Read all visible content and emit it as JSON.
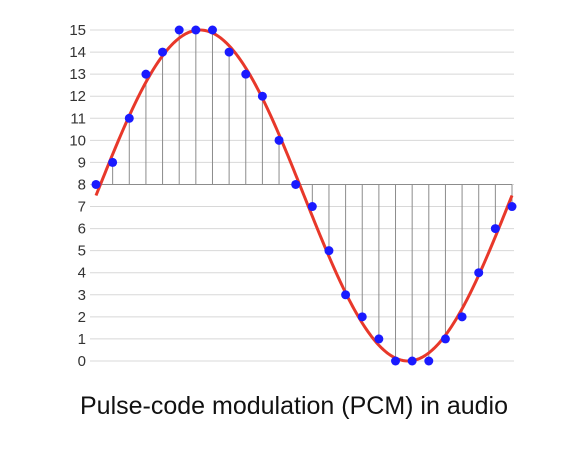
{
  "caption": "Pulse-code modulation (PCM) in audio",
  "colors": {
    "signal": "#e8382a",
    "samples": "#1a1aff",
    "grid": "#d8d8d8",
    "stems": "#8c8c8c",
    "text": "#333333"
  },
  "chart_data": {
    "type": "scatter",
    "title": "",
    "xlabel": "",
    "ylabel": "",
    "ylim": [
      0,
      15
    ],
    "yticks": [
      "0",
      "1",
      "2",
      "3",
      "4",
      "5",
      "6",
      "7",
      "8",
      "9",
      "10",
      "11",
      "12",
      "13",
      "14",
      "15"
    ],
    "baseline": 8,
    "grid": true,
    "signal": {
      "type": "sine",
      "midline": 7.5,
      "amplitude": 7.5,
      "cycles": 1
    },
    "samples": [
      8,
      9,
      11,
      13,
      14,
      15,
      15,
      15,
      14,
      13,
      12,
      10,
      8,
      7,
      5,
      3,
      2,
      1,
      0,
      0,
      0,
      1,
      2,
      4,
      6,
      7
    ]
  }
}
